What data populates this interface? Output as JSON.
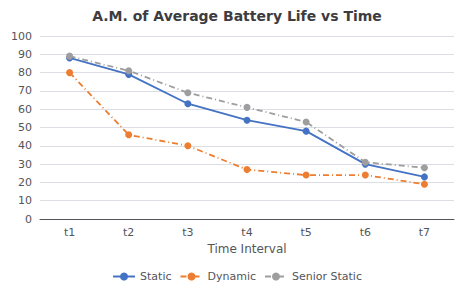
{
  "chart_data": {
    "type": "line",
    "title": "A.M. of Average Battery Life vs Time",
    "xlabel": "Time Interval",
    "categories": [
      "t1",
      "t2",
      "t3",
      "t4",
      "t5",
      "t6",
      "t7"
    ],
    "series": [
      {
        "name": "Static",
        "color": "#4472c4",
        "marker": "circle",
        "line_style": "solid",
        "values": [
          88,
          79,
          63,
          54,
          48,
          30,
          23
        ]
      },
      {
        "name": "Dynamic",
        "color": "#ed7d31",
        "marker": "circle",
        "line_style": "dashdot",
        "values": [
          80,
          46,
          40,
          27,
          24,
          24,
          19
        ]
      },
      {
        "name": "Senior Static",
        "color": "#9e9e9e",
        "marker": "circle",
        "line_style": "dashdot",
        "values": [
          89,
          81,
          69,
          61,
          53,
          31,
          28
        ]
      }
    ],
    "ylim": [
      0,
      100
    ],
    "yticks": [
      0,
      10,
      20,
      30,
      40,
      50,
      60,
      70,
      80,
      90,
      100
    ],
    "grid": true,
    "legend": "bottom"
  }
}
